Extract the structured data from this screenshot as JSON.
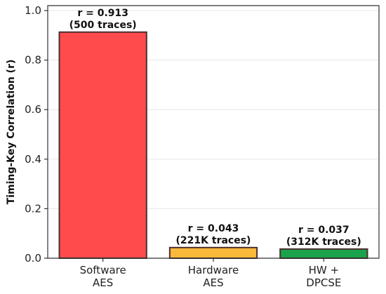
{
  "chart_data": {
    "type": "bar",
    "categories": [
      [
        "Software",
        "AES"
      ],
      [
        "Hardware",
        "AES"
      ],
      [
        "HW +",
        "DPCSE"
      ]
    ],
    "values": [
      0.913,
      0.043,
      0.037
    ],
    "bar_labels": [
      [
        "r = 0.913",
        "(500 traces)"
      ],
      [
        "r = 0.043",
        "(221K traces)"
      ],
      [
        "r = 0.037",
        "(312K traces)"
      ]
    ],
    "colors": [
      "#ff4b4b",
      "#fbb93b",
      "#1aa34a"
    ],
    "title": "",
    "xlabel": "",
    "ylabel": "Timing-Key Correlation (r)",
    "ylim": [
      0,
      1.02
    ],
    "yticks": [
      0.0,
      0.2,
      0.4,
      0.6,
      0.8,
      1.0
    ],
    "ytick_labels": [
      "0.0",
      "0.2",
      "0.4",
      "0.6",
      "0.8",
      "1.0"
    ],
    "grid": true
  }
}
